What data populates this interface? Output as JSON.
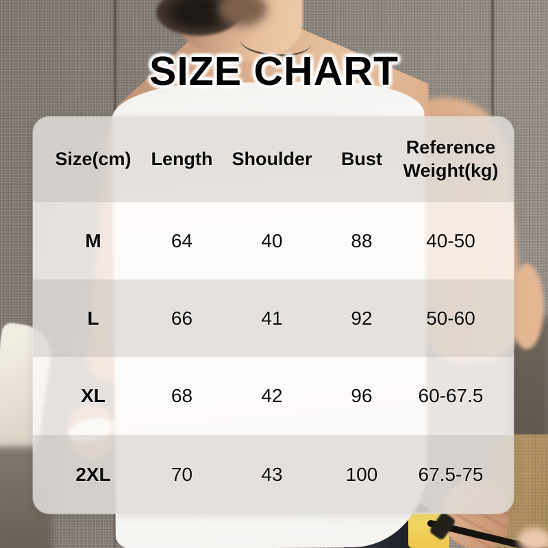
{
  "title": "SIZE CHART",
  "chart_data": {
    "type": "table",
    "title": "SIZE CHART",
    "columns": [
      "Size(cm)",
      "Length",
      "Shoulder",
      "Bust",
      "Reference Weight(kg)"
    ],
    "rows": [
      [
        "M",
        "64",
        "40",
        "88",
        "40-50"
      ],
      [
        "L",
        "66",
        "41",
        "92",
        "50-60"
      ],
      [
        "XL",
        "68",
        "42",
        "96",
        "60-67.5"
      ],
      [
        "2XL",
        "70",
        "43",
        "100",
        "67.5-75"
      ]
    ],
    "units": {
      "measurements": "cm",
      "weight": "kg"
    }
  },
  "colors": {
    "title_text": "#040404",
    "table_text": "#0c0c0c",
    "stripe_dark": "#e0dcd8",
    "stripe_light": "#fcfaf9"
  }
}
